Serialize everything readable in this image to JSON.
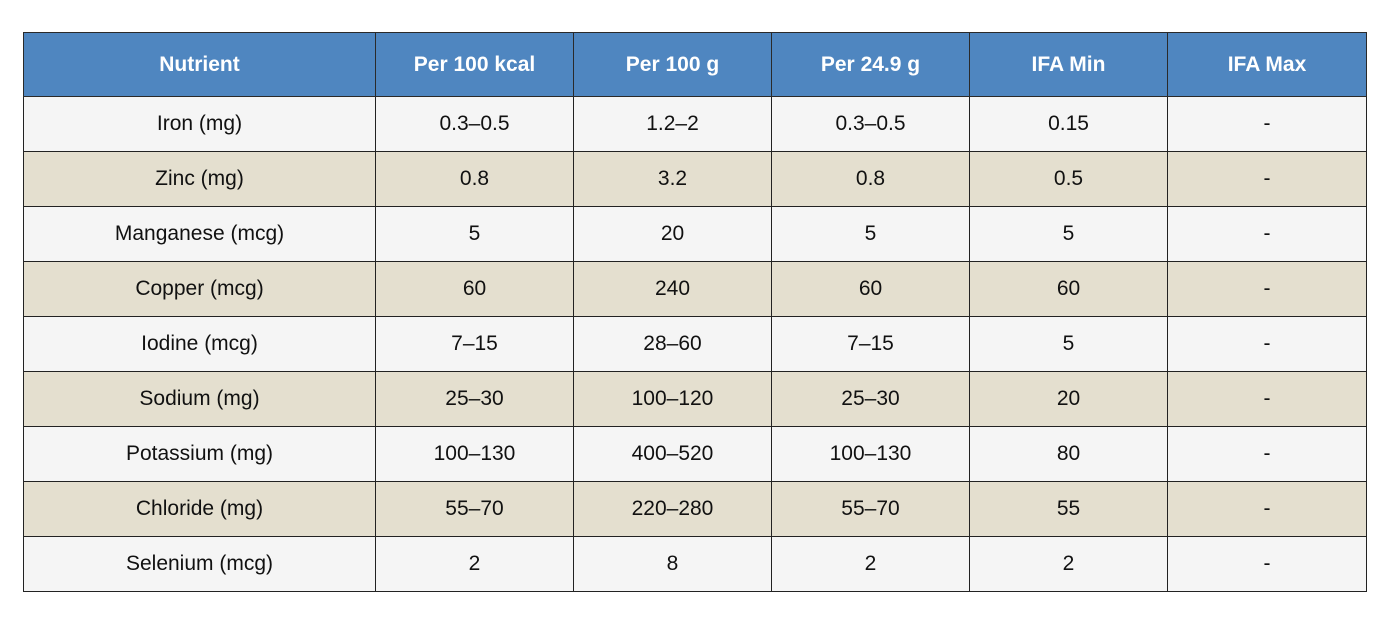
{
  "table": {
    "headers": [
      "Nutrient",
      "Per 100 kcal",
      "Per 100 g",
      "Per 24.9 g",
      "IFA Min",
      "IFA Max"
    ],
    "rows": [
      [
        "Iron (mg)",
        "0.3–0.5",
        "1.2–2",
        "0.3–0.5",
        "0.15",
        "-"
      ],
      [
        "Zinc (mg)",
        "0.8",
        "3.2",
        "0.8",
        "0.5",
        "-"
      ],
      [
        "Manganese (mcg)",
        "5",
        "20",
        "5",
        "5",
        "-"
      ],
      [
        "Copper (mcg)",
        "60",
        "240",
        "60",
        "60",
        "-"
      ],
      [
        "Iodine (mcg)",
        "7–15",
        "28–60",
        "7–15",
        "5",
        "-"
      ],
      [
        "Sodium (mg)",
        "25–30",
        "100–120",
        "25–30",
        "20",
        "-"
      ],
      [
        "Potassium (mg)",
        "100–130",
        "400–520",
        "100–130",
        "80",
        "-"
      ],
      [
        "Chloride (mg)",
        "55–70",
        "220–280",
        "55–70",
        "55",
        "-"
      ],
      [
        "Selenium (mcg)",
        "2",
        "8",
        "2",
        "2",
        "-"
      ]
    ],
    "colors": {
      "header_bg": "#4f86c0",
      "header_text": "#ffffff",
      "row_light": "#f5f5f5",
      "row_tan": "#e4dfcf",
      "border": "#222222"
    }
  }
}
